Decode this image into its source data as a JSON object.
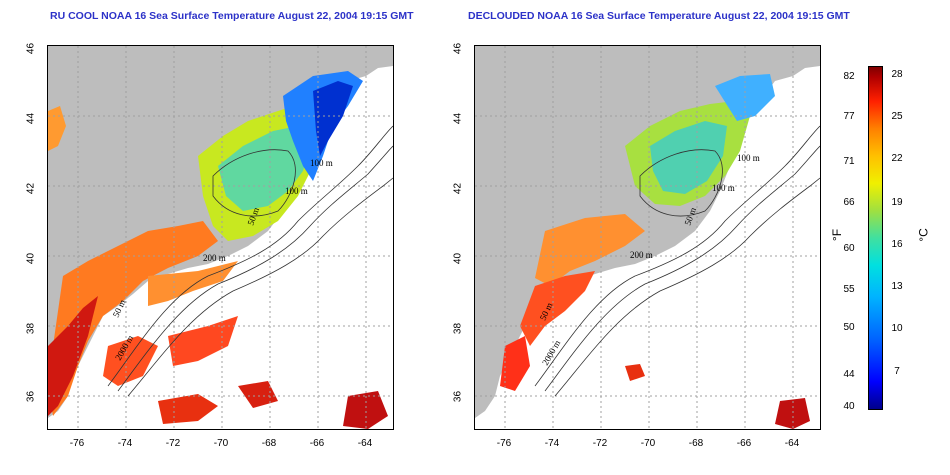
{
  "titles": {
    "left": "RU COOL NOAA 16 Sea Surface Temperature August 22, 2004 19:15 GMT",
    "right": "DECLOUDED NOAA 16 Sea Surface Temperature August 22, 2004 19:15 GMT"
  },
  "axes": {
    "lat_ticks": [
      "46",
      "44",
      "42",
      "40",
      "38",
      "36"
    ],
    "lon_ticks": [
      "-76",
      "-74",
      "-72",
      "-70",
      "-68",
      "-66",
      "-64"
    ]
  },
  "contours": {
    "left": [
      "100 m",
      "100 m",
      "50 m",
      "200 m",
      "50 m",
      "2000 m"
    ],
    "right": [
      "100 m",
      "100 m",
      "50 m",
      "200 m",
      "50 m",
      "2000 m"
    ]
  },
  "colorbar": {
    "fahrenheit_ticks": [
      "82",
      "77",
      "71",
      "66",
      "60",
      "55",
      "50",
      "44",
      "40"
    ],
    "celsius_ticks": [
      "28",
      "25",
      "22",
      "19",
      "16",
      "13",
      "10",
      "7"
    ],
    "fahrenheit_unit": "°F",
    "celsius_unit": "°C"
  },
  "colors": {
    "land": "#bdbdbd",
    "title": "#2c32c8",
    "warm": "#e83010",
    "cool": "#1040e0"
  }
}
